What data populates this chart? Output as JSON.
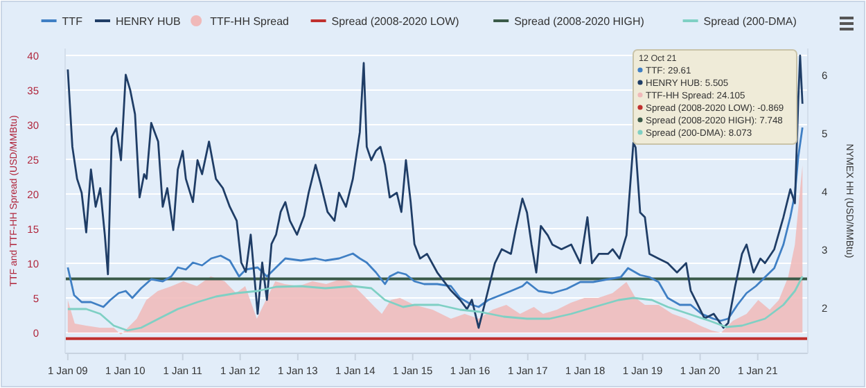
{
  "chart_data": {
    "type": "line",
    "ylabel": "TTF and TTF-HH Spread (USD/MMBtu)",
    "y2label": "NYMEX HH (USD/MMBtu)",
    "xlim": [
      "2008-12-15",
      "2021-11-15"
    ],
    "xticks": [
      {
        "value": "2009-01-01",
        "label": "1 Jan 09"
      },
      {
        "value": "2010-01-01",
        "label": "1 Jan 10"
      },
      {
        "value": "2011-01-01",
        "label": "1 Jan 11"
      },
      {
        "value": "2012-01-01",
        "label": "1 Jan 12"
      },
      {
        "value": "2013-01-01",
        "label": "1 Jan 13"
      },
      {
        "value": "2014-01-01",
        "label": "1 Jan 14"
      },
      {
        "value": "2015-01-01",
        "label": "1 Jan 15"
      },
      {
        "value": "2016-01-01",
        "label": "1 Jan 16"
      },
      {
        "value": "2017-01-01",
        "label": "1 Jan 17"
      },
      {
        "value": "2018-01-01",
        "label": "1 Jan 18"
      },
      {
        "value": "2019-01-01",
        "label": "1 Jan 19"
      },
      {
        "value": "2020-01-01",
        "label": "1 Jan 20"
      },
      {
        "value": "2021-01-01",
        "label": "1 Jan 21"
      }
    ],
    "ylim": [
      -3,
      41
    ],
    "yticks": [
      0,
      5,
      10,
      15,
      20,
      25,
      30,
      35,
      40
    ],
    "y2lim": [
      1.21,
      6.45
    ],
    "y2ticks": [
      2,
      3,
      4,
      5,
      6
    ],
    "grid": "y",
    "legend": "top",
    "marker": "none",
    "line_style": "solid",
    "series": [
      {
        "name": "TTF",
        "color": "#3f7fc4",
        "x": [
          "2009-01-01",
          "2009-02-10",
          "2009-03-30",
          "2009-05-28",
          "2009-08-15",
          "2009-09-28",
          "2009-11-20",
          "2010-01-04",
          "2010-02-15",
          "2010-04-12",
          "2010-06-15",
          "2010-08-27",
          "2010-10-20",
          "2010-12-01",
          "2011-01-21",
          "2011-03-07",
          "2011-05-04",
          "2011-07-01",
          "2011-08-30",
          "2011-10-27",
          "2011-12-25",
          "2012-02-06",
          "2012-04-21",
          "2012-06-19",
          "2012-08-16",
          "2012-10-14",
          "2013-01-20",
          "2013-04-24",
          "2013-06-25",
          "2013-09-20",
          "2013-12-17",
          "2014-01-30",
          "2014-03-15",
          "2014-05-12",
          "2014-07-09",
          "2014-08-08",
          "2014-09-30",
          "2014-11-19",
          "2015-01-12",
          "2015-03-15",
          "2015-06-06",
          "2015-09-01",
          "2015-10-29",
          "2016-01-12",
          "2016-02-24",
          "2016-04-25",
          "2016-09-16",
          "2016-11-28",
          "2016-12-27",
          "2017-03-10",
          "2017-06-06",
          "2017-09-05",
          "2017-12-01",
          "2018-02-20",
          "2018-05-26",
          "2018-08-15",
          "2018-09-30",
          "2018-12-16",
          "2019-02-13",
          "2019-04-12",
          "2019-06-09",
          "2019-08-25",
          "2019-11-02",
          "2020-01-10",
          "2020-03-25",
          "2020-05-10",
          "2020-06-27",
          "2020-08-25",
          "2020-10-22",
          "2020-12-20",
          "2021-02-16",
          "2021-04-16",
          "2021-06-13",
          "2021-07-27",
          "2021-08-25",
          "2021-09-15",
          "2021-10-12"
        ],
        "values": [
          9.4,
          5.4,
          4.4,
          4.4,
          3.7,
          4.7,
          5.7,
          6.0,
          5.0,
          6.4,
          7.7,
          7.4,
          8.1,
          9.4,
          9.1,
          10.1,
          9.7,
          10.7,
          11.1,
          10.4,
          8.1,
          9.1,
          9.4,
          8.1,
          9.4,
          10.7,
          10.4,
          10.7,
          10.4,
          10.7,
          11.4,
          10.7,
          10.1,
          8.7,
          7.0,
          8.1,
          8.7,
          8.4,
          7.4,
          7.0,
          7.0,
          6.7,
          5.0,
          4.0,
          3.7,
          4.7,
          6.0,
          6.7,
          7.3,
          6.0,
          5.7,
          6.3,
          7.3,
          7.3,
          7.7,
          8.0,
          9.3,
          8.3,
          8.0,
          7.3,
          5.0,
          4.0,
          4.0,
          2.7,
          2.0,
          1.7,
          2.0,
          4.0,
          5.7,
          6.7,
          8.0,
          9.3,
          12.7,
          16.7,
          20,
          25.3,
          29.6
        ]
      },
      {
        "name": "HENRY HUB",
        "axis": "y2",
        "color": "#1f3d66",
        "x": [
          "2009-01-01",
          "2009-01-30",
          "2009-03-01",
          "2009-03-30",
          "2009-04-28",
          "2009-05-28",
          "2009-06-27",
          "2009-07-26",
          "2009-08-24",
          "2009-09-13",
          "2009-10-07",
          "2009-11-05",
          "2009-12-05",
          "2010-01-04",
          "2010-02-02",
          "2010-03-04",
          "2010-04-02",
          "2010-05-01",
          "2010-05-16",
          "2010-06-15",
          "2010-07-29",
          "2010-08-27",
          "2010-09-25",
          "2010-11-02",
          "2010-12-01",
          "2011-01-01",
          "2011-01-21",
          "2011-03-07",
          "2011-04-05",
          "2011-05-04",
          "2011-06-17",
          "2011-07-31",
          "2011-09-13",
          "2011-10-27",
          "2011-12-10",
          "2012-01-08",
          "2012-02-06",
          "2012-03-08",
          "2012-04-21",
          "2012-05-20",
          "2012-06-19",
          "2012-07-18",
          "2012-08-16",
          "2012-09-14",
          "2012-10-14",
          "2012-11-12",
          "2012-12-27",
          "2013-02-10",
          "2013-03-11",
          "2013-04-24",
          "2013-05-26",
          "2013-07-09",
          "2013-08-22",
          "2013-09-20",
          "2013-11-03",
          "2013-12-17",
          "2014-01-30",
          "2014-02-24",
          "2014-03-15",
          "2014-04-13",
          "2014-05-12",
          "2014-06-10",
          "2014-07-09",
          "2014-08-08",
          "2014-09-22",
          "2014-10-21",
          "2014-11-19",
          "2014-12-19",
          "2015-01-12",
          "2015-02-17",
          "2015-04-02",
          "2015-06-06",
          "2015-09-01",
          "2015-10-29",
          "2015-12-12",
          "2016-01-12",
          "2016-02-24",
          "2016-04-09",
          "2016-06-06",
          "2016-07-20",
          "2016-09-16",
          "2016-10-15",
          "2016-11-28",
          "2016-12-27",
          "2017-01-25",
          "2017-02-24",
          "2017-03-25",
          "2017-05-08",
          "2017-06-06",
          "2017-08-03",
          "2017-10-04",
          "2017-12-01",
          "2018-01-15",
          "2018-02-13",
          "2018-03-29",
          "2018-05-26",
          "2018-06-24",
          "2018-08-07",
          "2018-09-20",
          "2018-11-03",
          "2018-11-17",
          "2018-12-16",
          "2019-01-15",
          "2019-02-13",
          "2019-04-12",
          "2019-06-09",
          "2019-08-07",
          "2019-10-04",
          "2019-11-02",
          "2019-12-16",
          "2020-01-29",
          "2020-03-27",
          "2020-05-28",
          "2020-06-27",
          "2020-08-10",
          "2020-09-23",
          "2020-10-22",
          "2020-12-05",
          "2021-01-18",
          "2021-02-16",
          "2021-04-16",
          "2021-06-13",
          "2021-07-27",
          "2021-08-25",
          "2021-09-15",
          "2021-09-27",
          "2021-10-12"
        ],
        "values": [
          6.09,
          4.76,
          4.21,
          3.97,
          3.29,
          4.37,
          3.73,
          4.05,
          3.25,
          2.57,
          4.93,
          5.08,
          4.53,
          6.0,
          5.73,
          5.32,
          3.89,
          4.29,
          4.21,
          5.17,
          4.85,
          3.73,
          4.05,
          3.33,
          4.37,
          4.69,
          4.21,
          3.81,
          4.53,
          4.29,
          4.85,
          4.21,
          4.05,
          3.73,
          3.49,
          2.77,
          2.61,
          3.25,
          1.89,
          2.77,
          2.13,
          3.09,
          3.25,
          3.64,
          3.81,
          3.49,
          3.25,
          3.57,
          3.97,
          4.45,
          4.13,
          3.64,
          3.49,
          3.97,
          3.73,
          4.21,
          5.01,
          6.2,
          4.76,
          4.53,
          4.69,
          4.76,
          4.45,
          3.89,
          3.97,
          3.64,
          4.53,
          3.81,
          3.09,
          2.84,
          2.92,
          2.6,
          2.29,
          2.13,
          1.97,
          2.13,
          1.65,
          2.13,
          2.76,
          3.0,
          2.92,
          3.32,
          3.87,
          3.63,
          3.08,
          2.6,
          3.4,
          3.24,
          3.08,
          3.0,
          3.08,
          2.76,
          3.55,
          2.76,
          2.92,
          2.92,
          3.0,
          2.84,
          3.24,
          4.83,
          4.75,
          3.63,
          3.55,
          2.92,
          2.84,
          2.76,
          2.6,
          2.76,
          2.29,
          2.05,
          1.81,
          1.89,
          1.65,
          1.73,
          2.36,
          2.92,
          3.08,
          2.6,
          2.84,
          2.76,
          3.0,
          3.55,
          4.03,
          3.79,
          5.54,
          6.33,
          5.5
        ]
      },
      {
        "name": "TTF-HH Spread",
        "type": "area",
        "color": "#f0b9b9",
        "x": [
          "2009-01-01",
          "2009-02-14",
          "2009-04-27",
          "2009-07-24",
          "2009-10-20",
          "2009-12-04",
          "2010-01-17",
          "2010-03-15",
          "2010-05-15",
          "2010-07-27",
          "2010-10-22",
          "2011-01-05",
          "2011-04-01",
          "2011-06-28",
          "2011-09-24",
          "2011-12-06",
          "2012-02-02",
          "2012-04-16",
          "2012-06-13",
          "2012-08-11",
          "2012-10-10",
          "2013-01-07",
          "2013-04-04",
          "2013-07-01",
          "2013-09-27",
          "2013-11-24",
          "2014-02-21",
          "2014-05-05",
          "2014-06-19",
          "2014-08-15",
          "2014-10-12",
          "2015-01-10",
          "2015-05-08",
          "2015-09-01",
          "2015-11-27",
          "2016-02-24",
          "2016-05-22",
          "2016-08-18",
          "2016-11-13",
          "2017-02-09",
          "2017-04-08",
          "2017-07-05",
          "2017-10-01",
          "2017-12-27",
          "2018-03-24",
          "2018-06-24",
          "2018-09-20",
          "2018-11-17",
          "2019-01-15",
          "2019-04-12",
          "2019-07-09",
          "2019-10-04",
          "2020-01-01",
          "2020-03-14",
          "2020-05-14",
          "2020-07-27",
          "2020-10-22",
          "2021-01-04",
          "2021-03-18",
          "2021-05-15",
          "2021-07-13",
          "2021-08-25",
          "2021-09-24",
          "2021-10-12"
        ],
        "values": [
          4.7,
          1.3,
          1.0,
          0.7,
          0.7,
          -0.3,
          0.7,
          2.0,
          4.7,
          6.0,
          6.7,
          7.4,
          6.7,
          8.1,
          7.4,
          5.7,
          6.7,
          2.0,
          4.7,
          7.4,
          7.0,
          6.7,
          7.4,
          7.0,
          7.7,
          7.4,
          5.4,
          3.7,
          2.7,
          4.7,
          5.0,
          4.0,
          3.3,
          2.0,
          2.7,
          2.0,
          3.3,
          4.0,
          2.7,
          3.7,
          2.7,
          3.3,
          4.3,
          5.0,
          5.0,
          5.7,
          7.3,
          5.0,
          4.0,
          4.0,
          2.7,
          2.0,
          1.0,
          0.3,
          0,
          1.7,
          2.7,
          4.7,
          3.3,
          4.7,
          8.0,
          12.7,
          20,
          24.1
        ]
      },
      {
        "name": "Spread (200-DMA)",
        "color": "#7fd0c4",
        "x": [
          "2009-01-01",
          "2009-04-28",
          "2009-07-26",
          "2009-10-20",
          "2010-01-15",
          "2010-04-12",
          "2010-08-01",
          "2010-12-01",
          "2011-04-05",
          "2011-07-31",
          "2011-12-10",
          "2012-04-21",
          "2012-08-16",
          "2013-01-20",
          "2013-06-25",
          "2013-12-17",
          "2014-04-13",
          "2014-07-09",
          "2014-11-01",
          "2015-01-12",
          "2015-06-15",
          "2015-10-29",
          "2016-03-01",
          "2016-08-01",
          "2016-12-27",
          "2017-05-20",
          "2017-10-04",
          "2018-03-01",
          "2018-08-01",
          "2018-11-03",
          "2019-03-01",
          "2019-06-09",
          "2019-10-20",
          "2020-03-01",
          "2020-06-15",
          "2020-09-23",
          "2021-02-16",
          "2021-06-13",
          "2021-08-25",
          "2021-10-12"
        ],
        "values": [
          3.4,
          3.4,
          2.7,
          1.0,
          0.3,
          0.7,
          2.0,
          3.4,
          4.4,
          5.2,
          5.7,
          6.0,
          6.6,
          6.7,
          6.4,
          6.7,
          6.4,
          4.7,
          3.7,
          4.0,
          4.0,
          3.3,
          3.0,
          2.3,
          2.0,
          2.0,
          2.7,
          3.7,
          4.7,
          5.0,
          4.7,
          3.7,
          2.7,
          1.7,
          0.8,
          1.0,
          2.0,
          4.0,
          6.0,
          8.1
        ]
      }
    ],
    "ref_lines": [
      {
        "axis": "y",
        "value": -0.869,
        "label": "Spread (2008-2020 LOW)",
        "color": "#c0302e"
      },
      {
        "axis": "y",
        "value": 7.748,
        "label": "Spread (2008-2020 HIGH)",
        "color": "#3a5a48"
      }
    ],
    "annotations": [
      "12 Oct 21",
      "TTF: 29.61",
      "HENRY HUB: 5.505",
      "TTF-HH Spread: 24.105",
      "Spread (2008-2020 LOW): -0.869",
      "Spread (2008-2020 HIGH): 7.748",
      "Spread (200-DMA): 8.073"
    ]
  }
}
